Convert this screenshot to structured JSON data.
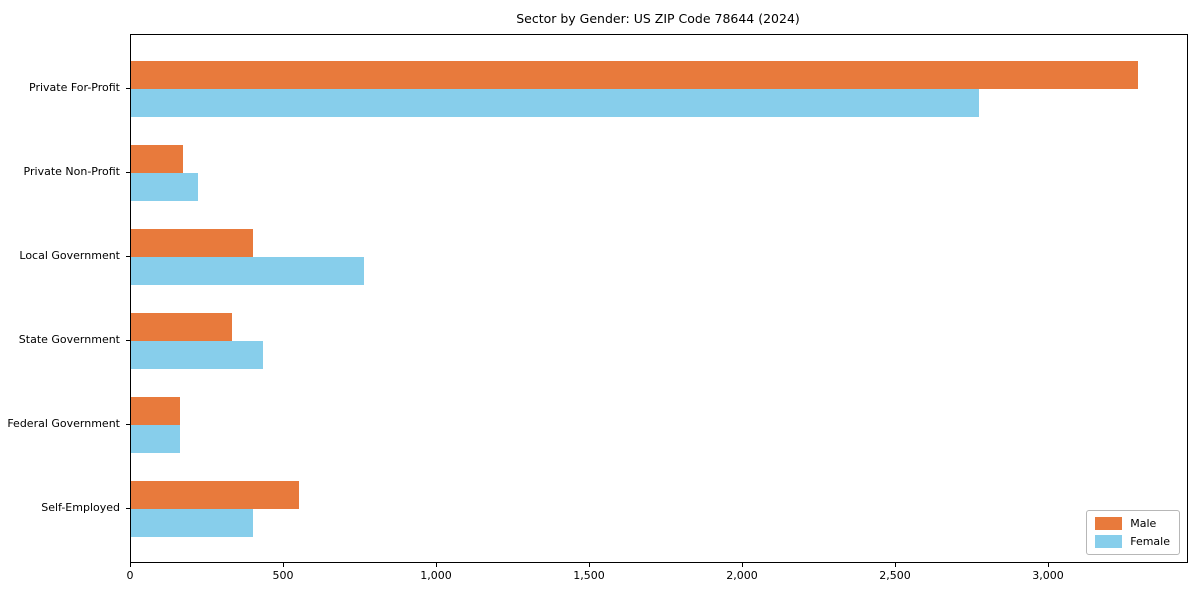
{
  "chart_data": {
    "type": "bar",
    "orientation": "horizontal",
    "title": "Sector by Gender: US ZIP Code 78644 (2024)",
    "categories": [
      "Private For-Profit",
      "Private Non-Profit",
      "Local Government",
      "State Government",
      "Federal Government",
      "Self-Employed"
    ],
    "series": [
      {
        "name": "Male",
        "color": "#e87a3c",
        "values": [
          3290,
          170,
          400,
          330,
          160,
          550
        ]
      },
      {
        "name": "Female",
        "color": "#87ceeb",
        "values": [
          2770,
          220,
          760,
          430,
          160,
          400
        ]
      }
    ],
    "xlabel": "",
    "ylabel": "",
    "xlim": [
      0,
      3450
    ],
    "x_ticks": [
      0,
      500,
      1000,
      1500,
      2000,
      2500,
      3000
    ],
    "x_tick_labels": [
      "0",
      "500",
      "1,000",
      "1,500",
      "2,000",
      "2,500",
      "3,000"
    ],
    "legend_position": "lower right",
    "grid": false,
    "axis_color": "#000000",
    "background_color": "#ffffff"
  }
}
